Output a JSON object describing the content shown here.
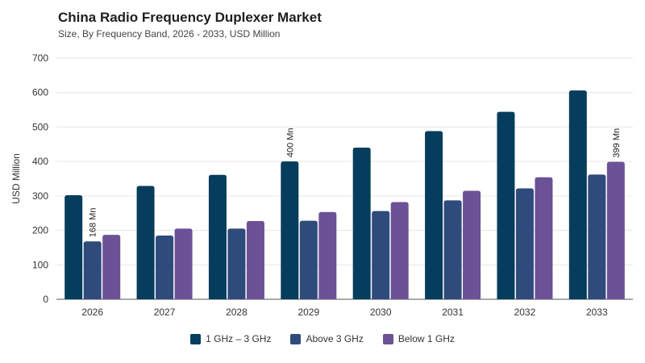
{
  "header": {
    "title": "China Radio Frequency Duplexer Market",
    "subtitle": "Size, By Frequency Band, 2026 - 2033, USD Million"
  },
  "chart_data": {
    "type": "bar",
    "title": "China Radio Frequency Duplexer Market",
    "subtitle": "Size, By Frequency Band, 2026 - 2033, USD Million",
    "xlabel": "",
    "ylabel": "USD Million",
    "ylim": [
      0,
      700
    ],
    "yticks": [
      0,
      100,
      200,
      300,
      400,
      500,
      600,
      700
    ],
    "grid": true,
    "legend_position": "bottom",
    "categories": [
      "2026",
      "2027",
      "2028",
      "2029",
      "2030",
      "2031",
      "2032",
      "2033"
    ],
    "series": [
      {
        "name": "1 GHz – 3 GHz",
        "color": "#063d5c",
        "values": [
          302,
          329,
          361,
          400,
          440,
          488,
          544,
          606
        ]
      },
      {
        "name": "Above 3 GHz",
        "color": "#2e4b7c",
        "values": [
          168,
          185,
          205,
          228,
          256,
          287,
          322,
          362
        ]
      },
      {
        "name": "Below 1 GHz",
        "color": "#6b5196",
        "values": [
          187,
          205,
          227,
          253,
          282,
          315,
          354,
          399
        ]
      }
    ],
    "annotations": [
      {
        "series": 1,
        "category": "2026",
        "text": "168 Mn"
      },
      {
        "series": 0,
        "category": "2029",
        "text": "400 Mn"
      },
      {
        "series": 2,
        "category": "2033",
        "text": "399 Mn"
      }
    ]
  }
}
